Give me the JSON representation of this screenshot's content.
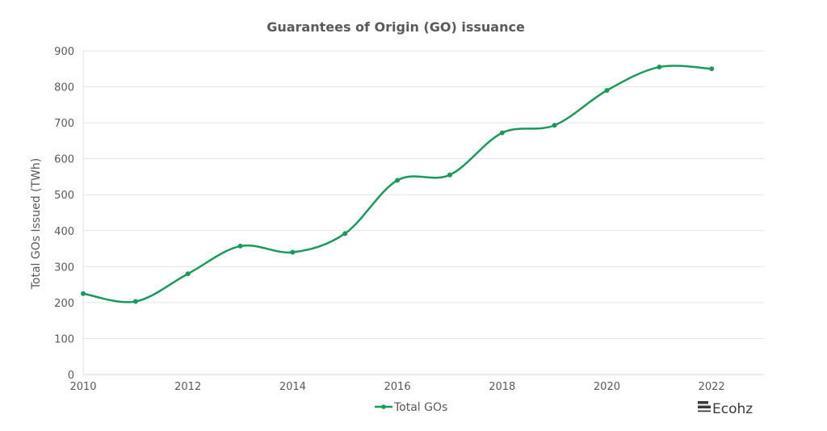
{
  "chart_data": {
    "type": "line",
    "title": "Guarantees of Origin (GO) issuance",
    "xlabel": "",
    "ylabel": "Total GOs Issued (TWh)",
    "x": [
      2010,
      2011,
      2012,
      2013,
      2014,
      2015,
      2016,
      2017,
      2018,
      2019,
      2020,
      2021,
      2022
    ],
    "series": [
      {
        "name": "Total GOs",
        "color": "#1a9a5a",
        "values": [
          225,
          203,
          280,
          357,
          340,
          392,
          540,
          555,
          672,
          693,
          790,
          855,
          850
        ],
        "smooth": true,
        "markers": true
      }
    ],
    "xlim": [
      2010,
      2023
    ],
    "ylim": [
      0,
      900
    ],
    "xticks": [
      2010,
      2012,
      2014,
      2016,
      2018,
      2020,
      2022
    ],
    "xtick_labels": [
      "2010",
      "2012",
      "2014",
      "2016",
      "2018",
      "2020",
      "2022"
    ],
    "yticks": [
      0,
      100,
      200,
      300,
      400,
      500,
      600,
      700,
      800,
      900
    ],
    "ytick_labels": [
      "0",
      "100",
      "200",
      "300",
      "400",
      "500",
      "600",
      "700",
      "800",
      "900"
    ],
    "grid": true,
    "legend_position": "bottom"
  },
  "branding": {
    "logo_text": "Ecohz"
  }
}
